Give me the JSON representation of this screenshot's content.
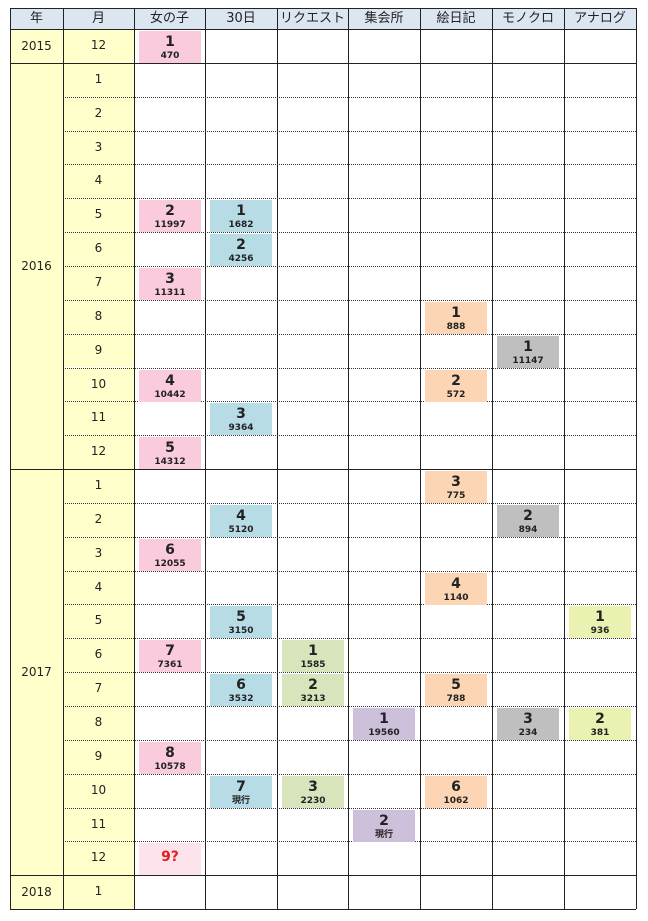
{
  "headers": [
    "年",
    "月",
    "女の子",
    "30日",
    "リクエスト",
    "集会所",
    "絵日記",
    "モノクロ",
    "アナログ"
  ],
  "years": [
    "2015",
    "2016",
    "2017",
    "2018"
  ],
  "months": [
    "12",
    "1",
    "2",
    "3",
    "4",
    "5",
    "6",
    "7",
    "8",
    "9",
    "10",
    "11",
    "12",
    "1",
    "2",
    "3",
    "4",
    "5",
    "6",
    "7",
    "8",
    "9",
    "10",
    "11",
    "12",
    "1"
  ],
  "colors": {
    "header": "#DCE6F1",
    "year_month_bg": "#FFFFCC",
    "onnanoko": "#F9CBDD",
    "onnanoko_latest": "#FDE4EC",
    "sanjuunichi": "#B8DCE6",
    "request": "#D8E4BC",
    "shuukaijo": "#CCC0DA",
    "enikki": "#FCD5B4",
    "monokuro": "#BFBFBF",
    "analog": "#EBF1B0"
  },
  "entries": [
    {
      "column": "女の子",
      "row": 0,
      "number": "1",
      "value": "470",
      "color": "onnanoko"
    },
    {
      "column": "女の子",
      "row": 5,
      "number": "2",
      "value": "11997",
      "color": "onnanoko"
    },
    {
      "column": "女の子",
      "row": 7,
      "number": "3",
      "value": "11311",
      "color": "onnanoko"
    },
    {
      "column": "女の子",
      "row": 10,
      "number": "4",
      "value": "10442",
      "color": "onnanoko"
    },
    {
      "column": "女の子",
      "row": 12,
      "number": "5",
      "value": "14312",
      "color": "onnanoko"
    },
    {
      "column": "女の子",
      "row": 15,
      "number": "6",
      "value": "12055",
      "color": "onnanoko"
    },
    {
      "column": "女の子",
      "row": 18,
      "number": "7",
      "value": "7361",
      "color": "onnanoko"
    },
    {
      "column": "女の子",
      "row": 21,
      "number": "8",
      "value": "10578",
      "color": "onnanoko"
    },
    {
      "column": "女の子",
      "row": 24,
      "number": "9?",
      "value": "",
      "color": "onnanoko_latest",
      "red": true
    },
    {
      "column": "30日",
      "row": 5,
      "number": "1",
      "value": "1682",
      "color": "sanjuunichi"
    },
    {
      "column": "30日",
      "row": 6,
      "number": "2",
      "value": "4256",
      "color": "sanjuunichi"
    },
    {
      "column": "30日",
      "row": 11,
      "number": "3",
      "value": "9364",
      "color": "sanjuunichi"
    },
    {
      "column": "30日",
      "row": 14,
      "number": "4",
      "value": "5120",
      "color": "sanjuunichi"
    },
    {
      "column": "30日",
      "row": 17,
      "number": "5",
      "value": "3150",
      "color": "sanjuunichi"
    },
    {
      "column": "30日",
      "row": 19,
      "number": "6",
      "value": "3532",
      "color": "sanjuunichi"
    },
    {
      "column": "30日",
      "row": 22,
      "number": "7",
      "value": "現行",
      "color": "sanjuunichi"
    },
    {
      "column": "リクエスト",
      "row": 18,
      "number": "1",
      "value": "1585",
      "color": "request"
    },
    {
      "column": "リクエスト",
      "row": 19,
      "number": "2",
      "value": "3213",
      "color": "request"
    },
    {
      "column": "リクエスト",
      "row": 22,
      "number": "3",
      "value": "2230",
      "color": "request"
    },
    {
      "column": "集会所",
      "row": 20,
      "number": "1",
      "value": "19560",
      "color": "shuukaijo"
    },
    {
      "column": "集会所",
      "row": 23,
      "number": "2",
      "value": "現行",
      "color": "shuukaijo"
    },
    {
      "column": "絵日記",
      "row": 8,
      "number": "1",
      "value": "888",
      "color": "enikki"
    },
    {
      "column": "絵日記",
      "row": 10,
      "number": "2",
      "value": "572",
      "color": "enikki"
    },
    {
      "column": "絵日記",
      "row": 13,
      "number": "3",
      "value": "775",
      "color": "enikki"
    },
    {
      "column": "絵日記",
      "row": 16,
      "number": "4",
      "value": "1140",
      "color": "enikki"
    },
    {
      "column": "絵日記",
      "row": 19,
      "number": "5",
      "value": "788",
      "color": "enikki"
    },
    {
      "column": "絵日記",
      "row": 22,
      "number": "6",
      "value": "1062",
      "color": "enikki"
    },
    {
      "column": "モノクロ",
      "row": 9,
      "number": "1",
      "value": "11147",
      "color": "monokuro"
    },
    {
      "column": "モノクロ",
      "row": 14,
      "number": "2",
      "value": "894",
      "color": "monokuro"
    },
    {
      "column": "モノクロ",
      "row": 20,
      "number": "3",
      "value": "234",
      "color": "monokuro"
    },
    {
      "column": "アナログ",
      "row": 17,
      "number": "1",
      "value": "936",
      "color": "analog"
    },
    {
      "column": "アナログ",
      "row": 20,
      "number": "2",
      "value": "381",
      "color": "analog"
    }
  ]
}
